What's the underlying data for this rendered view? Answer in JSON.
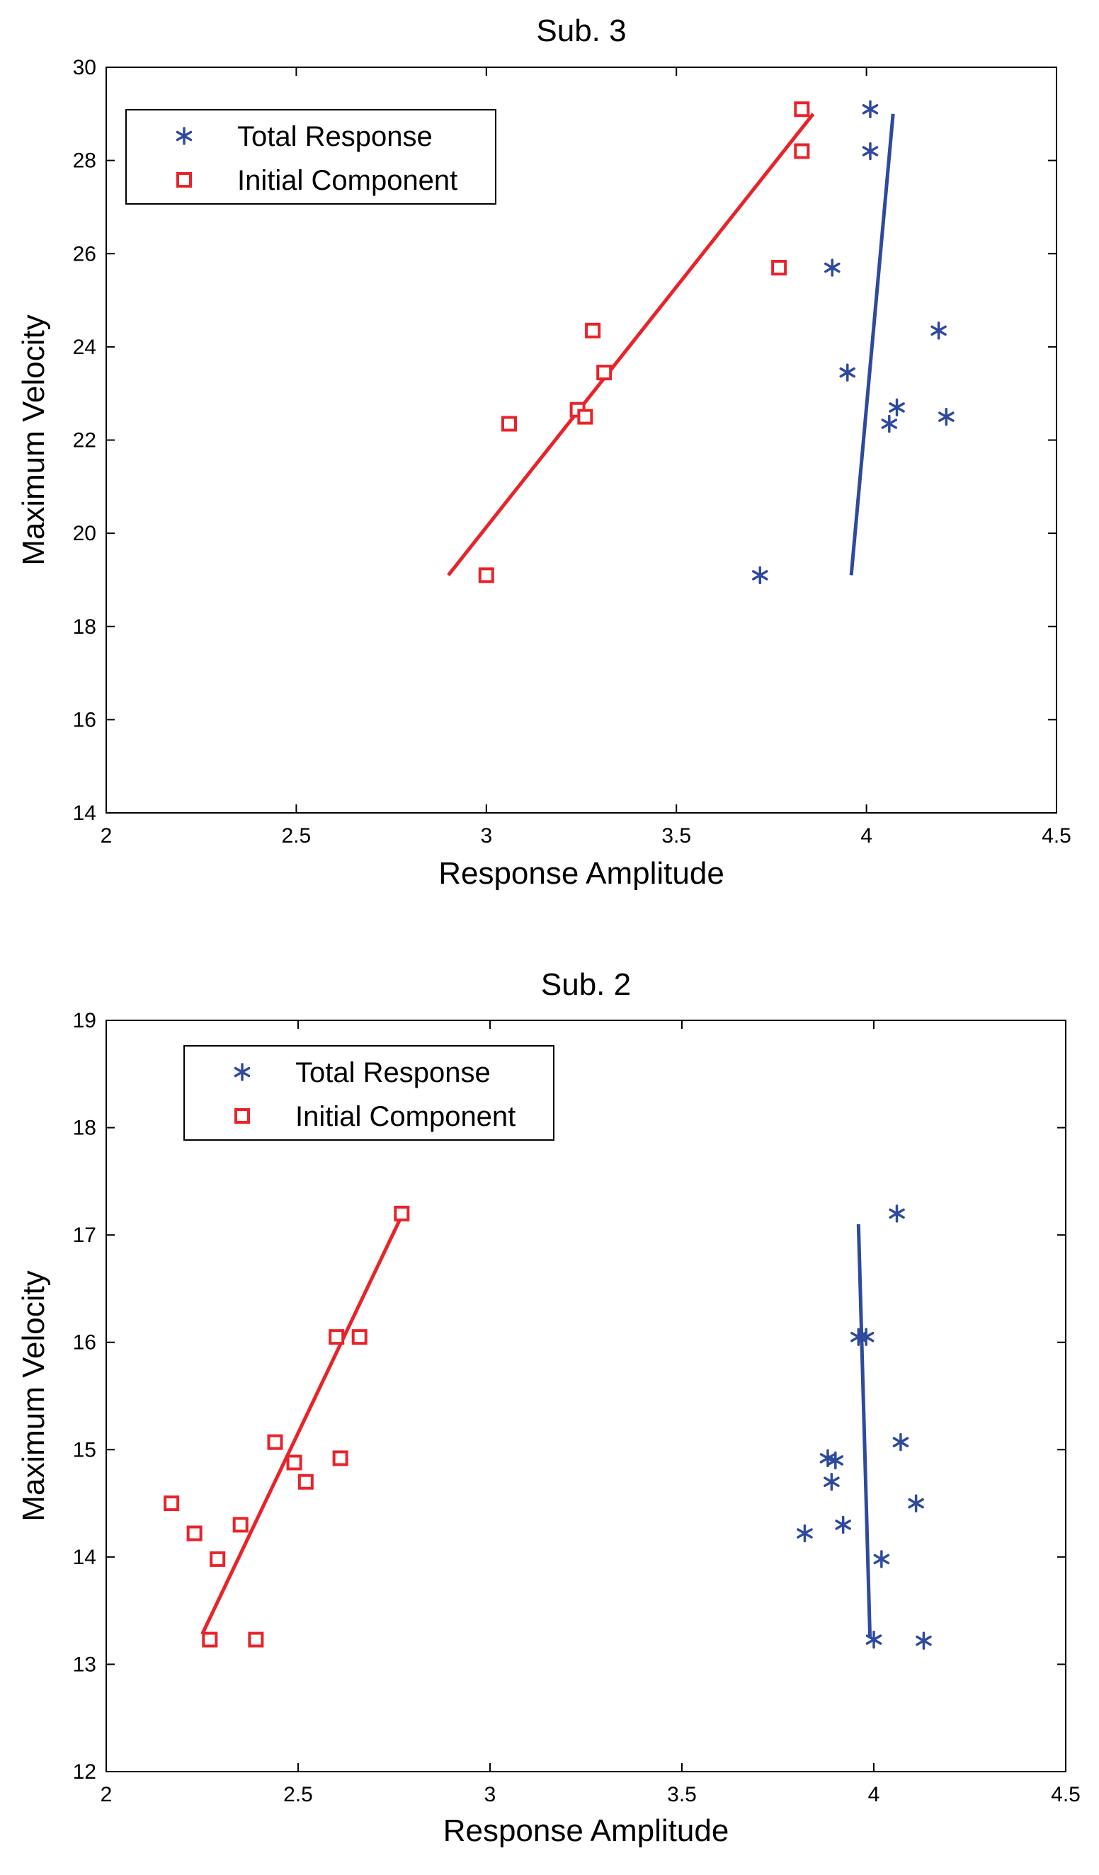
{
  "colors": {
    "total_response": "#2E4A9E",
    "initial_component": "#E8232A",
    "axis": "#000000",
    "background": "#FFFFFF"
  },
  "chart_data": [
    {
      "type": "scatter",
      "title": "Sub. 3",
      "xlabel": "Response Amplitude",
      "ylabel": "Maximum Velocity",
      "xlim": [
        2,
        4.5
      ],
      "ylim": [
        14,
        30
      ],
      "xticks": [
        "2",
        "2.5",
        "3",
        "3.5",
        "4",
        "4.5"
      ],
      "yticks": [
        "14",
        "16",
        "18",
        "20",
        "22",
        "24",
        "26",
        "28",
        "30"
      ],
      "legend_position": "top-left",
      "series": [
        {
          "name": "Total Response",
          "marker": "asterisk",
          "x": [
            4.01,
            4.01,
            3.91,
            4.19,
            3.95,
            4.08,
            4.06,
            4.21,
            3.72
          ],
          "y": [
            29.1,
            28.2,
            25.7,
            24.35,
            23.45,
            22.7,
            22.35,
            22.5,
            19.1
          ],
          "fit_line": {
            "x": [
              3.96,
              4.07
            ],
            "y": [
              19.1,
              29.0
            ]
          }
        },
        {
          "name": "Initial Component",
          "marker": "square",
          "x": [
            3.83,
            3.83,
            3.77,
            3.28,
            3.31,
            3.24,
            3.26,
            3.06,
            3.0
          ],
          "y": [
            29.1,
            28.2,
            25.7,
            24.35,
            23.45,
            22.65,
            22.5,
            22.35,
            19.1
          ],
          "fit_line": {
            "x": [
              2.9,
              3.86
            ],
            "y": [
              19.1,
              29.0
            ]
          }
        }
      ]
    },
    {
      "type": "scatter",
      "title": "Sub. 2",
      "xlabel": "Response Amplitude",
      "ylabel": "Maximum Velocity",
      "xlim": [
        2,
        4.5
      ],
      "ylim": [
        12,
        19
      ],
      "xticks": [
        "2",
        "2.5",
        "3",
        "3.5",
        "4",
        "4.5"
      ],
      "yticks": [
        "12",
        "13",
        "14",
        "15",
        "16",
        "17",
        "18",
        "19"
      ],
      "legend_position": "top-left",
      "series": [
        {
          "name": "Total Response",
          "marker": "asterisk",
          "x": [
            4.06,
            3.96,
            3.98,
            4.07,
            3.88,
            3.9,
            3.89,
            3.82,
            3.92,
            4.11,
            4.02,
            4.0,
            4.13
          ],
          "y": [
            17.2,
            16.05,
            16.05,
            15.07,
            14.92,
            14.9,
            14.7,
            14.22,
            14.3,
            14.5,
            13.98,
            13.23,
            13.22
          ],
          "fit_line": {
            "x": [
              3.96,
              3.99
            ],
            "y": [
              17.1,
              13.25
            ]
          }
        },
        {
          "name": "Initial Component",
          "marker": "square",
          "x": [
            2.77,
            2.6,
            2.66,
            2.44,
            2.49,
            2.61,
            2.52,
            2.17,
            2.23,
            2.35,
            2.29,
            2.27,
            2.39
          ],
          "y": [
            17.2,
            16.05,
            16.05,
            15.07,
            14.88,
            14.92,
            14.7,
            14.5,
            14.22,
            14.3,
            13.98,
            13.23,
            13.23
          ],
          "fit_line": {
            "x": [
              2.25,
              2.77
            ],
            "y": [
              13.28,
              17.18
            ]
          }
        }
      ]
    }
  ]
}
